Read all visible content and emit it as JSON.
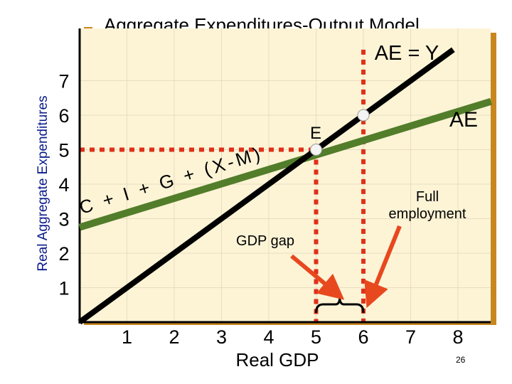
{
  "chart_data": {
    "type": "line",
    "title": "Aggregate Expenditures-Output Model",
    "ylabel": "Real Aggregate Expenditures",
    "xlabel": "Real GDP",
    "x_ticks": [
      "1",
      "2",
      "3",
      "4",
      "5",
      "6",
      "7",
      "8"
    ],
    "y_ticks": [
      "1",
      "2",
      "3",
      "4",
      "5",
      "6",
      "7"
    ],
    "xlim": [
      0,
      8.7
    ],
    "ylim": [
      0,
      7.7
    ],
    "grid": true,
    "series": [
      {
        "name": "AE = Y",
        "color": "#000000",
        "points": [
          [
            0,
            0
          ],
          [
            7.9,
            7.9
          ]
        ]
      },
      {
        "name": "AE",
        "color": "#527d2a",
        "points": [
          [
            0,
            2.75
          ],
          [
            8.7,
            6.4
          ]
        ]
      }
    ],
    "equation_label": "C + I + G + (X-M)",
    "annotations": {
      "equilibrium_label": "E",
      "equilibrium": [
        5,
        5
      ],
      "full_employment_label": "Full employment",
      "full_employment": [
        6,
        6
      ],
      "gap_label": "GDP gap"
    },
    "colors": {
      "dash": "#e0301a",
      "arrow": "#e8481e",
      "ae": "#527d2a",
      "panel": "#fdf4d6",
      "grid": "#e8dcc0",
      "shadow": "#c8871e"
    }
  },
  "page_number": "26"
}
